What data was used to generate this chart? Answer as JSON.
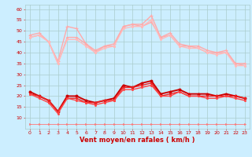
{
  "x": [
    0,
    1,
    2,
    3,
    4,
    5,
    6,
    7,
    8,
    9,
    10,
    11,
    12,
    13,
    14,
    15,
    16,
    17,
    18,
    19,
    20,
    21,
    22,
    23
  ],
  "series": [
    {
      "values": [
        48,
        49,
        45,
        36,
        52,
        51,
        44,
        41,
        43,
        44,
        52,
        53,
        53,
        57,
        47,
        49,
        44,
        43,
        43,
        41,
        40,
        41,
        35,
        35
      ],
      "color": "#ffaaaa",
      "lw": 1.0,
      "marker": "+",
      "ms": 3,
      "mew": 0.8
    },
    {
      "values": [
        47,
        48,
        45,
        35,
        47,
        47,
        44,
        40,
        43,
        43,
        52,
        53,
        52,
        54,
        47,
        48,
        43,
        43,
        42,
        40,
        40,
        40,
        35,
        34
      ],
      "color": "#ffaaaa",
      "lw": 1.0,
      "marker": "o",
      "ms": 1.5,
      "mew": 0.6
    },
    {
      "values": [
        47,
        48,
        45,
        35,
        46,
        46,
        43,
        40,
        42,
        43,
        51,
        52,
        52,
        55,
        46,
        48,
        43,
        42,
        42,
        40,
        39,
        40,
        34,
        34
      ],
      "color": "#ffbbbb",
      "lw": 1.0,
      "marker": "o",
      "ms": 1.5,
      "mew": 0.6
    },
    {
      "values": [
        22,
        20,
        18,
        13,
        20,
        20,
        18,
        17,
        18,
        19,
        25,
        24,
        26,
        27,
        21,
        22,
        23,
        21,
        21,
        21,
        20,
        21,
        20,
        19
      ],
      "color": "#cc0000",
      "lw": 1.4,
      "marker": "o",
      "ms": 2,
      "mew": 0.8
    },
    {
      "values": [
        21,
        20,
        18,
        13,
        19,
        19,
        17,
        17,
        18,
        18,
        24,
        24,
        25,
        26,
        20,
        21,
        22,
        20,
        20,
        20,
        20,
        20,
        20,
        19
      ],
      "color": "#ee2222",
      "lw": 1.0,
      "marker": "o",
      "ms": 1.5,
      "mew": 0.6
    },
    {
      "values": [
        21,
        19,
        17,
        12,
        19,
        18,
        17,
        16,
        17,
        18,
        23,
        23,
        24,
        25,
        20,
        20,
        22,
        20,
        20,
        19,
        19,
        20,
        19,
        18
      ],
      "color": "#ff4444",
      "lw": 1.0,
      "marker": "o",
      "ms": 1.5,
      "mew": 0.6
    },
    {
      "values": [
        7,
        7,
        7,
        7,
        7,
        7,
        7,
        7,
        7,
        7,
        7,
        7,
        7,
        7,
        7,
        7,
        7,
        7,
        7,
        7,
        7,
        7,
        7,
        7
      ],
      "color": "#ff7777",
      "lw": 0.6,
      "marker": ">",
      "ms": 1.5,
      "mew": 0.5
    }
  ],
  "xlabel": "Vent moyen/en rafales ( km/h )",
  "ylim": [
    5,
    62
  ],
  "xlim": [
    -0.5,
    23.5
  ],
  "yticks": [
    10,
    15,
    20,
    25,
    30,
    35,
    40,
    45,
    50,
    55,
    60
  ],
  "xticks": [
    0,
    1,
    2,
    3,
    4,
    5,
    6,
    7,
    8,
    9,
    10,
    11,
    12,
    13,
    14,
    15,
    16,
    17,
    18,
    19,
    20,
    21,
    22,
    23
  ],
  "bg_color": "#cceeff",
  "grid_color": "#aacccc",
  "xlabel_color": "#cc0000",
  "tick_color": "#cc0000",
  "tick_labelsize": 4.5,
  "xlabel_fontsize": 6.0
}
